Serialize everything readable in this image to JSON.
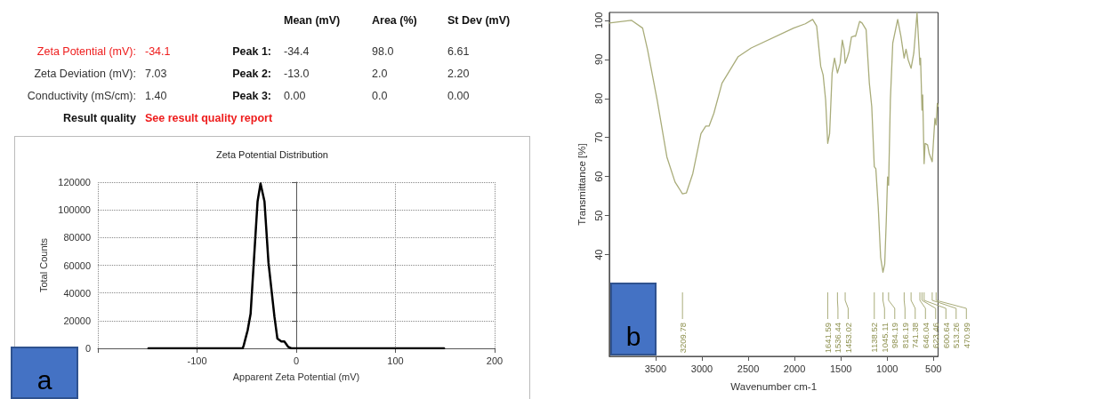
{
  "chart_data": [
    {
      "type": "other",
      "annotations": [
        "Mean (mV)",
        "Area (%)",
        "St Dev (mV)",
        "Zeta Potential (mV):",
        "-34.1",
        "Peak 1:",
        "-34.4",
        "98.0",
        "6.61",
        "Zeta Deviation (mV):",
        "7.03",
        "Peak 2:",
        "-13.0",
        "2.0",
        "2.20",
        "Conductivity (mS/cm):",
        "1.40",
        "Peak 3:",
        "0.00",
        "0.0",
        "0.00",
        "Result quality",
        "See result quality report"
      ]
    },
    {
      "type": "line",
      "title": "Zeta Potential Distribution",
      "xlabel": "Apparent Zeta Potential (mV)",
      "ylabel": "Total Counts",
      "x": [
        -149,
        -54,
        -53,
        -49,
        -46,
        -39,
        -36,
        -32,
        -28,
        -22,
        -19,
        -15,
        -12,
        -8,
        -5,
        149
      ],
      "series": [
        {
          "color": "#000000",
          "values": [
            0,
            0,
            2000,
            13000,
            25000,
            106000,
            119000,
            106000,
            62000,
            23000,
            7000,
            5000,
            5000,
            1000,
            0,
            0
          ]
        }
      ],
      "xlim": [
        -200,
        200
      ],
      "xticks": [
        {
          "value": -200,
          "label": null
        },
        -100,
        0,
        100,
        200
      ],
      "ylim": [
        0,
        120000
      ],
      "yticks": [
        0,
        20000,
        40000,
        60000,
        80000,
        100000,
        120000
      ],
      "grid": true,
      "marker": "none",
      "line_style": "solid",
      "annotations": [
        "a"
      ]
    },
    {
      "type": "line",
      "xlabel": "Wavenumber cm-1",
      "ylabel": "Transmittance [%]",
      "x": [
        4000,
        3762,
        3640,
        3587,
        3483,
        3378,
        3290,
        3209.78,
        3168,
        3098,
        3010,
        2958,
        2923,
        2871,
        2783,
        2608,
        2468,
        2010,
        1883,
        1804,
        1761,
        1717,
        1691,
        1664,
        1641.59,
        1621,
        1594,
        1568,
        1536.44,
        1507,
        1484,
        1463,
        1453.02,
        1428,
        1411,
        1385,
        1350,
        1341,
        1297,
        1271,
        1227,
        1192,
        1166,
        1138.52,
        1122,
        1096,
        1070,
        1045.11,
        1026,
        1009,
        995,
        984.19,
        965,
        939,
        886,
        851,
        816.19,
        796,
        773,
        741.38,
        712,
        677,
        646.04,
        639,
        623.46,
        616,
        600.64,
        590,
        563,
        546,
        513.26,
        484,
        470.99,
        458,
        451
      ],
      "series": [
        {
          "color": "#a9ac7a",
          "values": [
            99.3,
            100,
            98,
            92.5,
            79.6,
            65,
            58.6,
            55.6,
            55.8,
            60.8,
            71,
            72.9,
            72.9,
            76.2,
            83.9,
            90.7,
            92.9,
            98,
            99.1,
            100.2,
            98.5,
            88.2,
            86,
            79.6,
            68.5,
            71,
            86.5,
            90.3,
            86.5,
            89,
            94.9,
            92.5,
            89,
            90.7,
            92,
            95.7,
            96,
            95.9,
            99.7,
            99.3,
            97.6,
            83.9,
            77.9,
            62.5,
            62,
            52.2,
            39.3,
            35.5,
            37.6,
            48.8,
            59.9,
            57.8,
            79.6,
            94.2,
            100.2,
            95.9,
            90.3,
            92.6,
            89.9,
            87.7,
            91.6,
            101.9,
            88.6,
            90.3,
            77,
            80.9,
            63.3,
            68.5,
            68.1,
            65.9,
            63.8,
            74.9,
            73.2,
            78.7,
            78
          ]
        }
      ],
      "xlim": [
        4000,
        450
      ],
      "xticks": [
        3500,
        3000,
        2500,
        2000,
        1500,
        1000,
        500
      ],
      "ylim": [
        14,
        102
      ],
      "yticks": [
        40,
        50,
        60,
        70,
        80,
        90,
        100
      ],
      "marker": "none",
      "line_style": "solid",
      "annotations": [
        "b",
        {
          "text": "3209.78",
          "x": 3209.78
        },
        {
          "text": "1641.59",
          "x": 1641.59
        },
        {
          "text": "1536.44",
          "x": 1536.44
        },
        {
          "text": "1453.02",
          "x": 1453.02
        },
        {
          "text": "1138.52",
          "x": 1138.52
        },
        {
          "text": "1045.11",
          "x": 1045.11
        },
        {
          "text": "984.19",
          "x": 984.19
        },
        {
          "text": "816.19",
          "x": 816.19
        },
        {
          "text": "741.38",
          "x": 741.38
        },
        {
          "text": "646.04",
          "x": 646.04
        },
        {
          "text": "623.46",
          "x": 623.46
        },
        {
          "text": "600.64",
          "x": 600.64
        },
        {
          "text": "513.26",
          "x": 513.26
        },
        {
          "text": "470.99",
          "x": 470.99
        }
      ]
    }
  ]
}
